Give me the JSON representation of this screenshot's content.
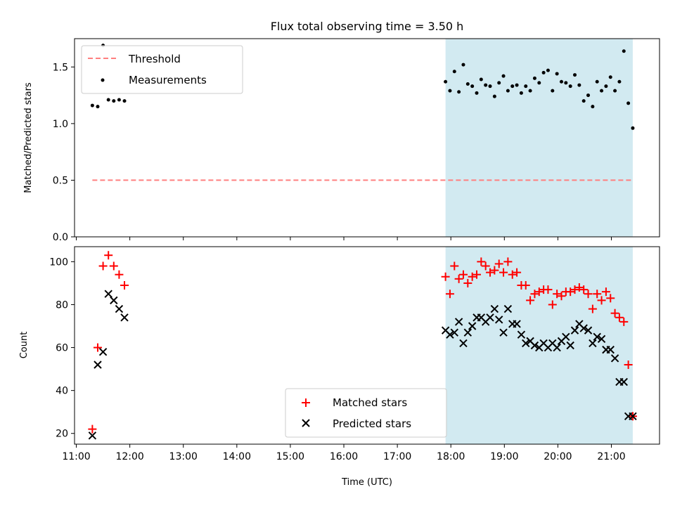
{
  "figure": {
    "title": "Flux total observing time = 3.50 h",
    "xlabel": "Time (UTC)",
    "xticks": [
      "11:00",
      "12:00",
      "13:00",
      "14:00",
      "15:00",
      "16:00",
      "17:00",
      "18:00",
      "19:00",
      "20:00",
      "21:00"
    ]
  },
  "chart_data": [
    {
      "type": "scatter",
      "title": "Flux total observing time = 3.50 h",
      "xlabel": "",
      "ylabel": "Matched/Predicted stars",
      "xlim": [
        "10:58",
        "21:54"
      ],
      "ylim": [
        0,
        1.75
      ],
      "yticks": [
        "0.0",
        "0.5",
        "1.0",
        "1.5"
      ],
      "highlight_span": [
        "17:54",
        "21:24"
      ],
      "highlight_color": "#add8e6",
      "legend_position": "top-left",
      "series": [
        {
          "name": "Threshold",
          "style": "dashed-line",
          "color": "#ff7f7f",
          "x": [
            "11:18",
            "21:24"
          ],
          "y": [
            0.5,
            0.5
          ]
        },
        {
          "name": "Measurements",
          "style": "dot",
          "color": "#000000",
          "x": [
            "11:18",
            "11:24",
            "11:30",
            "11:36",
            "11:42",
            "11:48",
            "11:54",
            "17:54",
            "17:59",
            "18:04",
            "18:09",
            "18:14",
            "18:19",
            "18:24",
            "18:29",
            "18:34",
            "18:39",
            "18:44",
            "18:49",
            "18:54",
            "18:59",
            "19:04",
            "19:09",
            "19:14",
            "19:19",
            "19:24",
            "19:29",
            "19:34",
            "19:39",
            "19:44",
            "19:49",
            "19:54",
            "19:59",
            "20:04",
            "20:09",
            "20:14",
            "20:19",
            "20:24",
            "20:29",
            "20:34",
            "20:39",
            "20:44",
            "20:49",
            "20:54",
            "20:59",
            "21:04",
            "21:09",
            "21:14",
            "21:19",
            "21:24"
          ],
          "y": [
            1.16,
            1.15,
            1.69,
            1.21,
            1.2,
            1.21,
            1.2,
            1.37,
            1.29,
            1.46,
            1.28,
            1.52,
            1.35,
            1.33,
            1.27,
            1.39,
            1.34,
            1.33,
            1.24,
            1.36,
            1.42,
            1.29,
            1.33,
            1.34,
            1.27,
            1.33,
            1.29,
            1.4,
            1.36,
            1.45,
            1.47,
            1.29,
            1.44,
            1.37,
            1.36,
            1.33,
            1.43,
            1.34,
            1.2,
            1.25,
            1.15,
            1.37,
            1.29,
            1.33,
            1.41,
            1.29,
            1.37,
            1.64,
            1.18,
            0.96
          ]
        }
      ]
    },
    {
      "type": "scatter",
      "xlabel": "Time (UTC)",
      "ylabel": "Count",
      "xlim": [
        "10:58",
        "21:54"
      ],
      "ylim": [
        15,
        107
      ],
      "yticks": [
        "20",
        "40",
        "60",
        "80",
        "100"
      ],
      "highlight_span": [
        "17:54",
        "21:24"
      ],
      "highlight_color": "#add8e6",
      "legend_position": "bottom-center",
      "series": [
        {
          "name": "Matched stars",
          "marker": "plus",
          "color": "#ff0000",
          "x": [
            "11:18",
            "11:24",
            "11:30",
            "11:36",
            "11:42",
            "11:48",
            "11:54",
            "17:54",
            "17:59",
            "18:04",
            "18:09",
            "18:14",
            "18:19",
            "18:24",
            "18:29",
            "18:34",
            "18:39",
            "18:44",
            "18:49",
            "18:54",
            "18:59",
            "19:04",
            "19:09",
            "19:14",
            "19:19",
            "19:24",
            "19:29",
            "19:34",
            "19:39",
            "19:44",
            "19:49",
            "19:54",
            "19:59",
            "20:04",
            "20:09",
            "20:14",
            "20:19",
            "20:24",
            "20:29",
            "20:34",
            "20:39",
            "20:44",
            "20:49",
            "20:54",
            "20:59",
            "21:04",
            "21:09",
            "21:14",
            "21:19",
            "21:24"
          ],
          "y": [
            22,
            60,
            98,
            103,
            98,
            94,
            89,
            93,
            85,
            98,
            92,
            94,
            90,
            93,
            94,
            100,
            98,
            95,
            96,
            99,
            95,
            100,
            94,
            95,
            89,
            89,
            82,
            85,
            86,
            87,
            87,
            80,
            85,
            84,
            86,
            86,
            87,
            88,
            87,
            85,
            78,
            85,
            82,
            86,
            83,
            76,
            74,
            72,
            52,
            28
          ]
        },
        {
          "name": "Predicted stars",
          "marker": "x",
          "color": "#000000",
          "x": [
            "11:18",
            "11:24",
            "11:30",
            "11:36",
            "11:42",
            "11:48",
            "11:54",
            "17:54",
            "17:59",
            "18:04",
            "18:09",
            "18:14",
            "18:19",
            "18:24",
            "18:29",
            "18:34",
            "18:39",
            "18:44",
            "18:49",
            "18:54",
            "18:59",
            "19:04",
            "19:09",
            "19:14",
            "19:19",
            "19:24",
            "19:29",
            "19:34",
            "19:39",
            "19:44",
            "19:49",
            "19:54",
            "19:59",
            "20:04",
            "20:09",
            "20:14",
            "20:19",
            "20:24",
            "20:29",
            "20:34",
            "20:39",
            "20:44",
            "20:49",
            "20:54",
            "20:59",
            "21:04",
            "21:09",
            "21:14",
            "21:19",
            "21:24"
          ],
          "y": [
            19,
            52,
            58,
            85,
            82,
            78,
            74,
            68,
            66,
            67,
            72,
            62,
            67,
            70,
            74,
            74,
            72,
            74,
            78,
            73,
            67,
            78,
            71,
            71,
            66,
            62,
            63,
            61,
            60,
            62,
            60,
            62,
            60,
            63,
            65,
            61,
            68,
            71,
            69,
            68,
            62,
            65,
            64,
            59,
            59,
            55,
            44,
            44,
            28,
            28
          ]
        }
      ]
    }
  ]
}
